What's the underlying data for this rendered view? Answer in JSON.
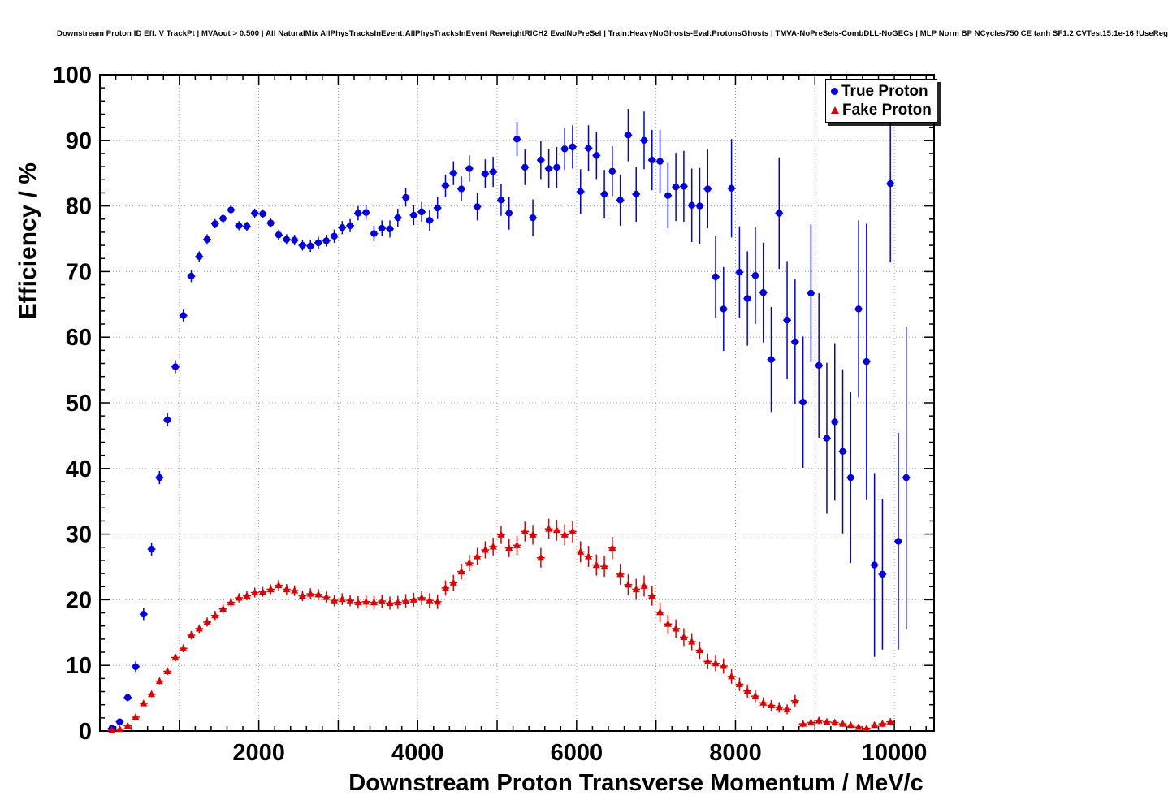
{
  "title": "Downstream Proton ID Eff. V TrackPt | MVAout > 0.500 | All NaturalMix AllPhysTracksInEvent:AllPhysTracksInEvent ReweightRICH2 EvalNoPreSel | Train:HeavyNoGhosts-Eval:ProtonsGhosts | TMVA-NoPreSels-CombDLL-NoGECs | MLP Norm BP NCycles750 CE tanh SF1.2 CVTest15:1e-16 !UseReg",
  "colors": {
    "true_proton": "#0000e0",
    "fake_proton": "#e00000",
    "frame": "#000000",
    "grid": "#555555",
    "background": "#ffffff"
  },
  "chart_data": {
    "type": "scatter",
    "title": "Downstream Proton ID Eff. V TrackPt | MVAout > 0.500 | All NaturalMix AllPhysTracksInEvent:AllPhysTracksInEvent ReweightRICH2 EvalNoPreSel | Train:HeavyNoGhosts-Eval:ProtonsGhosts | TMVA-NoPreSels-CombDLL-NoGECs | MLP Norm BP NCycles750 CE tanh SF1.2 CVTest15:1e-16 !UseReg",
    "xlabel": "Downstream Proton Transverse Momentum / MeV/c",
    "ylabel": "Efficiency / %",
    "xlim": [
      0,
      10500
    ],
    "ylim": [
      0,
      100
    ],
    "x_ticks": [
      2000,
      4000,
      6000,
      8000,
      10000
    ],
    "y_ticks": [
      0,
      10,
      20,
      30,
      40,
      50,
      60,
      70,
      80,
      90,
      100
    ],
    "x_minor_step": 200,
    "x_grid_step": 1000,
    "y_minor_step": 2,
    "grid": true,
    "grid_style": "dotted",
    "legend_position": "top-right",
    "x_bin_halfwidth": 50,
    "error_bars": true,
    "series": [
      {
        "name": "True Proton",
        "color": "#0000e0",
        "marker": "circle",
        "points": [
          [
            150,
            0.4,
            0.2
          ],
          [
            250,
            1.4,
            0.4
          ],
          [
            350,
            5.1,
            0.6
          ],
          [
            450,
            9.8,
            0.8
          ],
          [
            550,
            17.8,
            0.9
          ],
          [
            650,
            27.7,
            1.0
          ],
          [
            750,
            38.6,
            1.0
          ],
          [
            850,
            47.4,
            1.0
          ],
          [
            950,
            55.5,
            1.0
          ],
          [
            1050,
            63.3,
            0.9
          ],
          [
            1150,
            69.3,
            0.9
          ],
          [
            1250,
            72.3,
            0.8
          ],
          [
            1350,
            74.9,
            0.8
          ],
          [
            1450,
            77.3,
            0.7
          ],
          [
            1550,
            78.1,
            0.7
          ],
          [
            1650,
            79.4,
            0.7
          ],
          [
            1750,
            77.0,
            0.7
          ],
          [
            1850,
            76.9,
            0.7
          ],
          [
            1950,
            78.9,
            0.7
          ],
          [
            2050,
            78.8,
            0.7
          ],
          [
            2150,
            77.4,
            0.7
          ],
          [
            2250,
            75.6,
            0.8
          ],
          [
            2350,
            74.9,
            0.8
          ],
          [
            2450,
            74.8,
            0.8
          ],
          [
            2550,
            74.0,
            0.8
          ],
          [
            2650,
            73.9,
            0.9
          ],
          [
            2750,
            74.4,
            0.9
          ],
          [
            2850,
            74.7,
            0.9
          ],
          [
            2950,
            75.4,
            1.0
          ],
          [
            3050,
            76.7,
            1.0
          ],
          [
            3150,
            77.0,
            1.0
          ],
          [
            3250,
            78.9,
            1.1
          ],
          [
            3350,
            79.0,
            1.1
          ],
          [
            3450,
            75.8,
            1.2
          ],
          [
            3550,
            76.6,
            1.2
          ],
          [
            3650,
            76.5,
            1.3
          ],
          [
            3750,
            78.2,
            1.4
          ],
          [
            3850,
            81.3,
            1.4
          ],
          [
            3950,
            78.6,
            1.5
          ],
          [
            4050,
            79.1,
            1.5
          ],
          [
            4150,
            77.8,
            1.6
          ],
          [
            4250,
            79.7,
            1.7
          ],
          [
            4350,
            83.1,
            1.7
          ],
          [
            4450,
            85.0,
            1.8
          ],
          [
            4550,
            82.6,
            1.9
          ],
          [
            4650,
            85.7,
            2.0
          ],
          [
            4750,
            79.9,
            2.1
          ],
          [
            4850,
            84.9,
            2.2
          ],
          [
            4950,
            85.2,
            2.3
          ],
          [
            5050,
            80.9,
            2.4
          ],
          [
            5150,
            78.9,
            2.5
          ],
          [
            5250,
            90.2,
            2.6
          ],
          [
            5350,
            85.9,
            2.7
          ],
          [
            5450,
            78.2,
            2.8
          ],
          [
            5550,
            87.0,
            2.9
          ],
          [
            5650,
            85.7,
            3.0
          ],
          [
            5750,
            85.9,
            3.1
          ],
          [
            5850,
            88.7,
            3.2
          ],
          [
            5950,
            89.0,
            3.3
          ],
          [
            6050,
            82.2,
            3.4
          ],
          [
            6150,
            88.8,
            3.5
          ],
          [
            6250,
            87.7,
            3.6
          ],
          [
            6350,
            81.8,
            3.7
          ],
          [
            6450,
            85.3,
            3.8
          ],
          [
            6550,
            80.9,
            3.9
          ],
          [
            6650,
            90.8,
            4.0
          ],
          [
            6750,
            81.8,
            4.2
          ],
          [
            6850,
            90.0,
            4.4
          ],
          [
            6950,
            87.0,
            4.6
          ],
          [
            7050,
            86.8,
            4.8
          ],
          [
            7150,
            81.6,
            5.0
          ],
          [
            7250,
            82.9,
            5.2
          ],
          [
            7350,
            83.0,
            5.4
          ],
          [
            7450,
            80.1,
            5.6
          ],
          [
            7550,
            80.0,
            5.8
          ],
          [
            7650,
            82.6,
            6.0
          ],
          [
            7750,
            69.2,
            6.2
          ],
          [
            7850,
            64.3,
            6.4
          ],
          [
            7950,
            82.7,
            7.5
          ],
          [
            8050,
            69.9,
            7.0
          ],
          [
            8150,
            65.9,
            7.2
          ],
          [
            8250,
            69.4,
            7.4
          ],
          [
            8350,
            66.8,
            7.6
          ],
          [
            8450,
            56.6,
            8.0
          ],
          [
            8550,
            78.9,
            8.5
          ],
          [
            8650,
            62.6,
            9.0
          ],
          [
            8750,
            59.3,
            9.5
          ],
          [
            8850,
            50.1,
            10.0
          ],
          [
            8950,
            66.7,
            10.5
          ],
          [
            9050,
            55.7,
            11.0
          ],
          [
            9150,
            44.6,
            11.5
          ],
          [
            9250,
            47.1,
            12.0
          ],
          [
            9350,
            42.6,
            12.5
          ],
          [
            9450,
            38.6,
            13.0
          ],
          [
            9550,
            64.3,
            13.5
          ],
          [
            9650,
            56.3,
            21.0
          ],
          [
            9750,
            25.3,
            14.0
          ],
          [
            9850,
            23.9,
            11.5
          ],
          [
            9950,
            83.4,
            12.0
          ],
          [
            10050,
            28.9,
            16.5
          ],
          [
            10150,
            38.6,
            23.0
          ]
        ]
      },
      {
        "name": "Fake Proton",
        "color": "#e00000",
        "marker": "triangle",
        "points": [
          [
            150,
            0.1,
            0.1
          ],
          [
            250,
            0.3,
            0.15
          ],
          [
            350,
            0.8,
            0.2
          ],
          [
            450,
            2.1,
            0.3
          ],
          [
            550,
            4.2,
            0.4
          ],
          [
            650,
            5.6,
            0.45
          ],
          [
            750,
            7.6,
            0.5
          ],
          [
            850,
            9.1,
            0.55
          ],
          [
            950,
            11.2,
            0.6
          ],
          [
            1050,
            12.6,
            0.6
          ],
          [
            1150,
            14.6,
            0.65
          ],
          [
            1250,
            15.6,
            0.65
          ],
          [
            1350,
            16.6,
            0.7
          ],
          [
            1450,
            17.6,
            0.7
          ],
          [
            1550,
            18.6,
            0.7
          ],
          [
            1650,
            19.6,
            0.7
          ],
          [
            1750,
            20.3,
            0.7
          ],
          [
            1850,
            20.6,
            0.7
          ],
          [
            1950,
            21.1,
            0.75
          ],
          [
            2050,
            21.2,
            0.75
          ],
          [
            2150,
            21.6,
            0.75
          ],
          [
            2250,
            22.2,
            0.8
          ],
          [
            2350,
            21.6,
            0.8
          ],
          [
            2450,
            21.4,
            0.8
          ],
          [
            2550,
            20.6,
            0.8
          ],
          [
            2650,
            20.9,
            0.85
          ],
          [
            2750,
            20.8,
            0.85
          ],
          [
            2850,
            20.4,
            0.85
          ],
          [
            2950,
            19.9,
            0.9
          ],
          [
            3050,
            20.1,
            0.9
          ],
          [
            3150,
            19.9,
            0.9
          ],
          [
            3250,
            19.6,
            0.95
          ],
          [
            3350,
            19.7,
            0.95
          ],
          [
            3450,
            19.6,
            1.0
          ],
          [
            3550,
            19.8,
            1.0
          ],
          [
            3650,
            19.5,
            1.0
          ],
          [
            3750,
            19.6,
            1.0
          ],
          [
            3850,
            19.8,
            1.05
          ],
          [
            3950,
            20.0,
            1.05
          ],
          [
            4050,
            20.3,
            1.1
          ],
          [
            4150,
            19.9,
            1.1
          ],
          [
            4250,
            19.7,
            1.1
          ],
          [
            4350,
            21.8,
            1.15
          ],
          [
            4450,
            22.6,
            1.2
          ],
          [
            4550,
            24.3,
            1.2
          ],
          [
            4650,
            25.6,
            1.25
          ],
          [
            4750,
            26.6,
            1.3
          ],
          [
            4850,
            27.6,
            1.3
          ],
          [
            4950,
            28.1,
            1.35
          ],
          [
            5050,
            29.9,
            1.4
          ],
          [
            5150,
            27.9,
            1.4
          ],
          [
            5250,
            28.3,
            1.45
          ],
          [
            5350,
            30.4,
            1.5
          ],
          [
            5450,
            29.9,
            1.5
          ],
          [
            5550,
            26.4,
            1.5
          ],
          [
            5650,
            30.8,
            1.55
          ],
          [
            5750,
            30.6,
            1.6
          ],
          [
            5850,
            29.9,
            1.6
          ],
          [
            5950,
            30.4,
            1.65
          ],
          [
            6050,
            27.3,
            1.6
          ],
          [
            6150,
            26.6,
            1.6
          ],
          [
            6250,
            25.3,
            1.6
          ],
          [
            6350,
            25.1,
            1.6
          ],
          [
            6450,
            27.9,
            1.7
          ],
          [
            6550,
            23.9,
            1.6
          ],
          [
            6650,
            22.3,
            1.6
          ],
          [
            6750,
            21.6,
            1.6
          ],
          [
            6850,
            22.1,
            1.6
          ],
          [
            6950,
            20.6,
            1.5
          ],
          [
            7050,
            18.1,
            1.5
          ],
          [
            7150,
            16.3,
            1.4
          ],
          [
            7250,
            15.6,
            1.4
          ],
          [
            7350,
            14.3,
            1.35
          ],
          [
            7450,
            13.6,
            1.3
          ],
          [
            7550,
            12.3,
            1.3
          ],
          [
            7650,
            10.6,
            1.2
          ],
          [
            7750,
            10.3,
            1.2
          ],
          [
            7850,
            9.9,
            1.15
          ],
          [
            7950,
            8.3,
            1.1
          ],
          [
            8050,
            7.1,
            1.0
          ],
          [
            8150,
            6.1,
            1.0
          ],
          [
            8250,
            5.3,
            0.9
          ],
          [
            8350,
            4.3,
            0.85
          ],
          [
            8450,
            3.9,
            0.8
          ],
          [
            8550,
            3.6,
            0.8
          ],
          [
            8650,
            3.3,
            0.75
          ],
          [
            8750,
            4.6,
            0.9
          ],
          [
            8850,
            1.1,
            0.5
          ],
          [
            8950,
            1.3,
            0.5
          ],
          [
            9050,
            1.6,
            0.55
          ],
          [
            9150,
            1.4,
            0.5
          ],
          [
            9250,
            1.3,
            0.5
          ],
          [
            9350,
            1.1,
            0.45
          ],
          [
            9450,
            0.9,
            0.4
          ],
          [
            9550,
            0.6,
            0.35
          ],
          [
            9650,
            0.4,
            0.3
          ],
          [
            9750,
            0.9,
            0.45
          ],
          [
            9850,
            1.1,
            0.5
          ],
          [
            9950,
            1.4,
            0.55
          ]
        ]
      }
    ]
  }
}
